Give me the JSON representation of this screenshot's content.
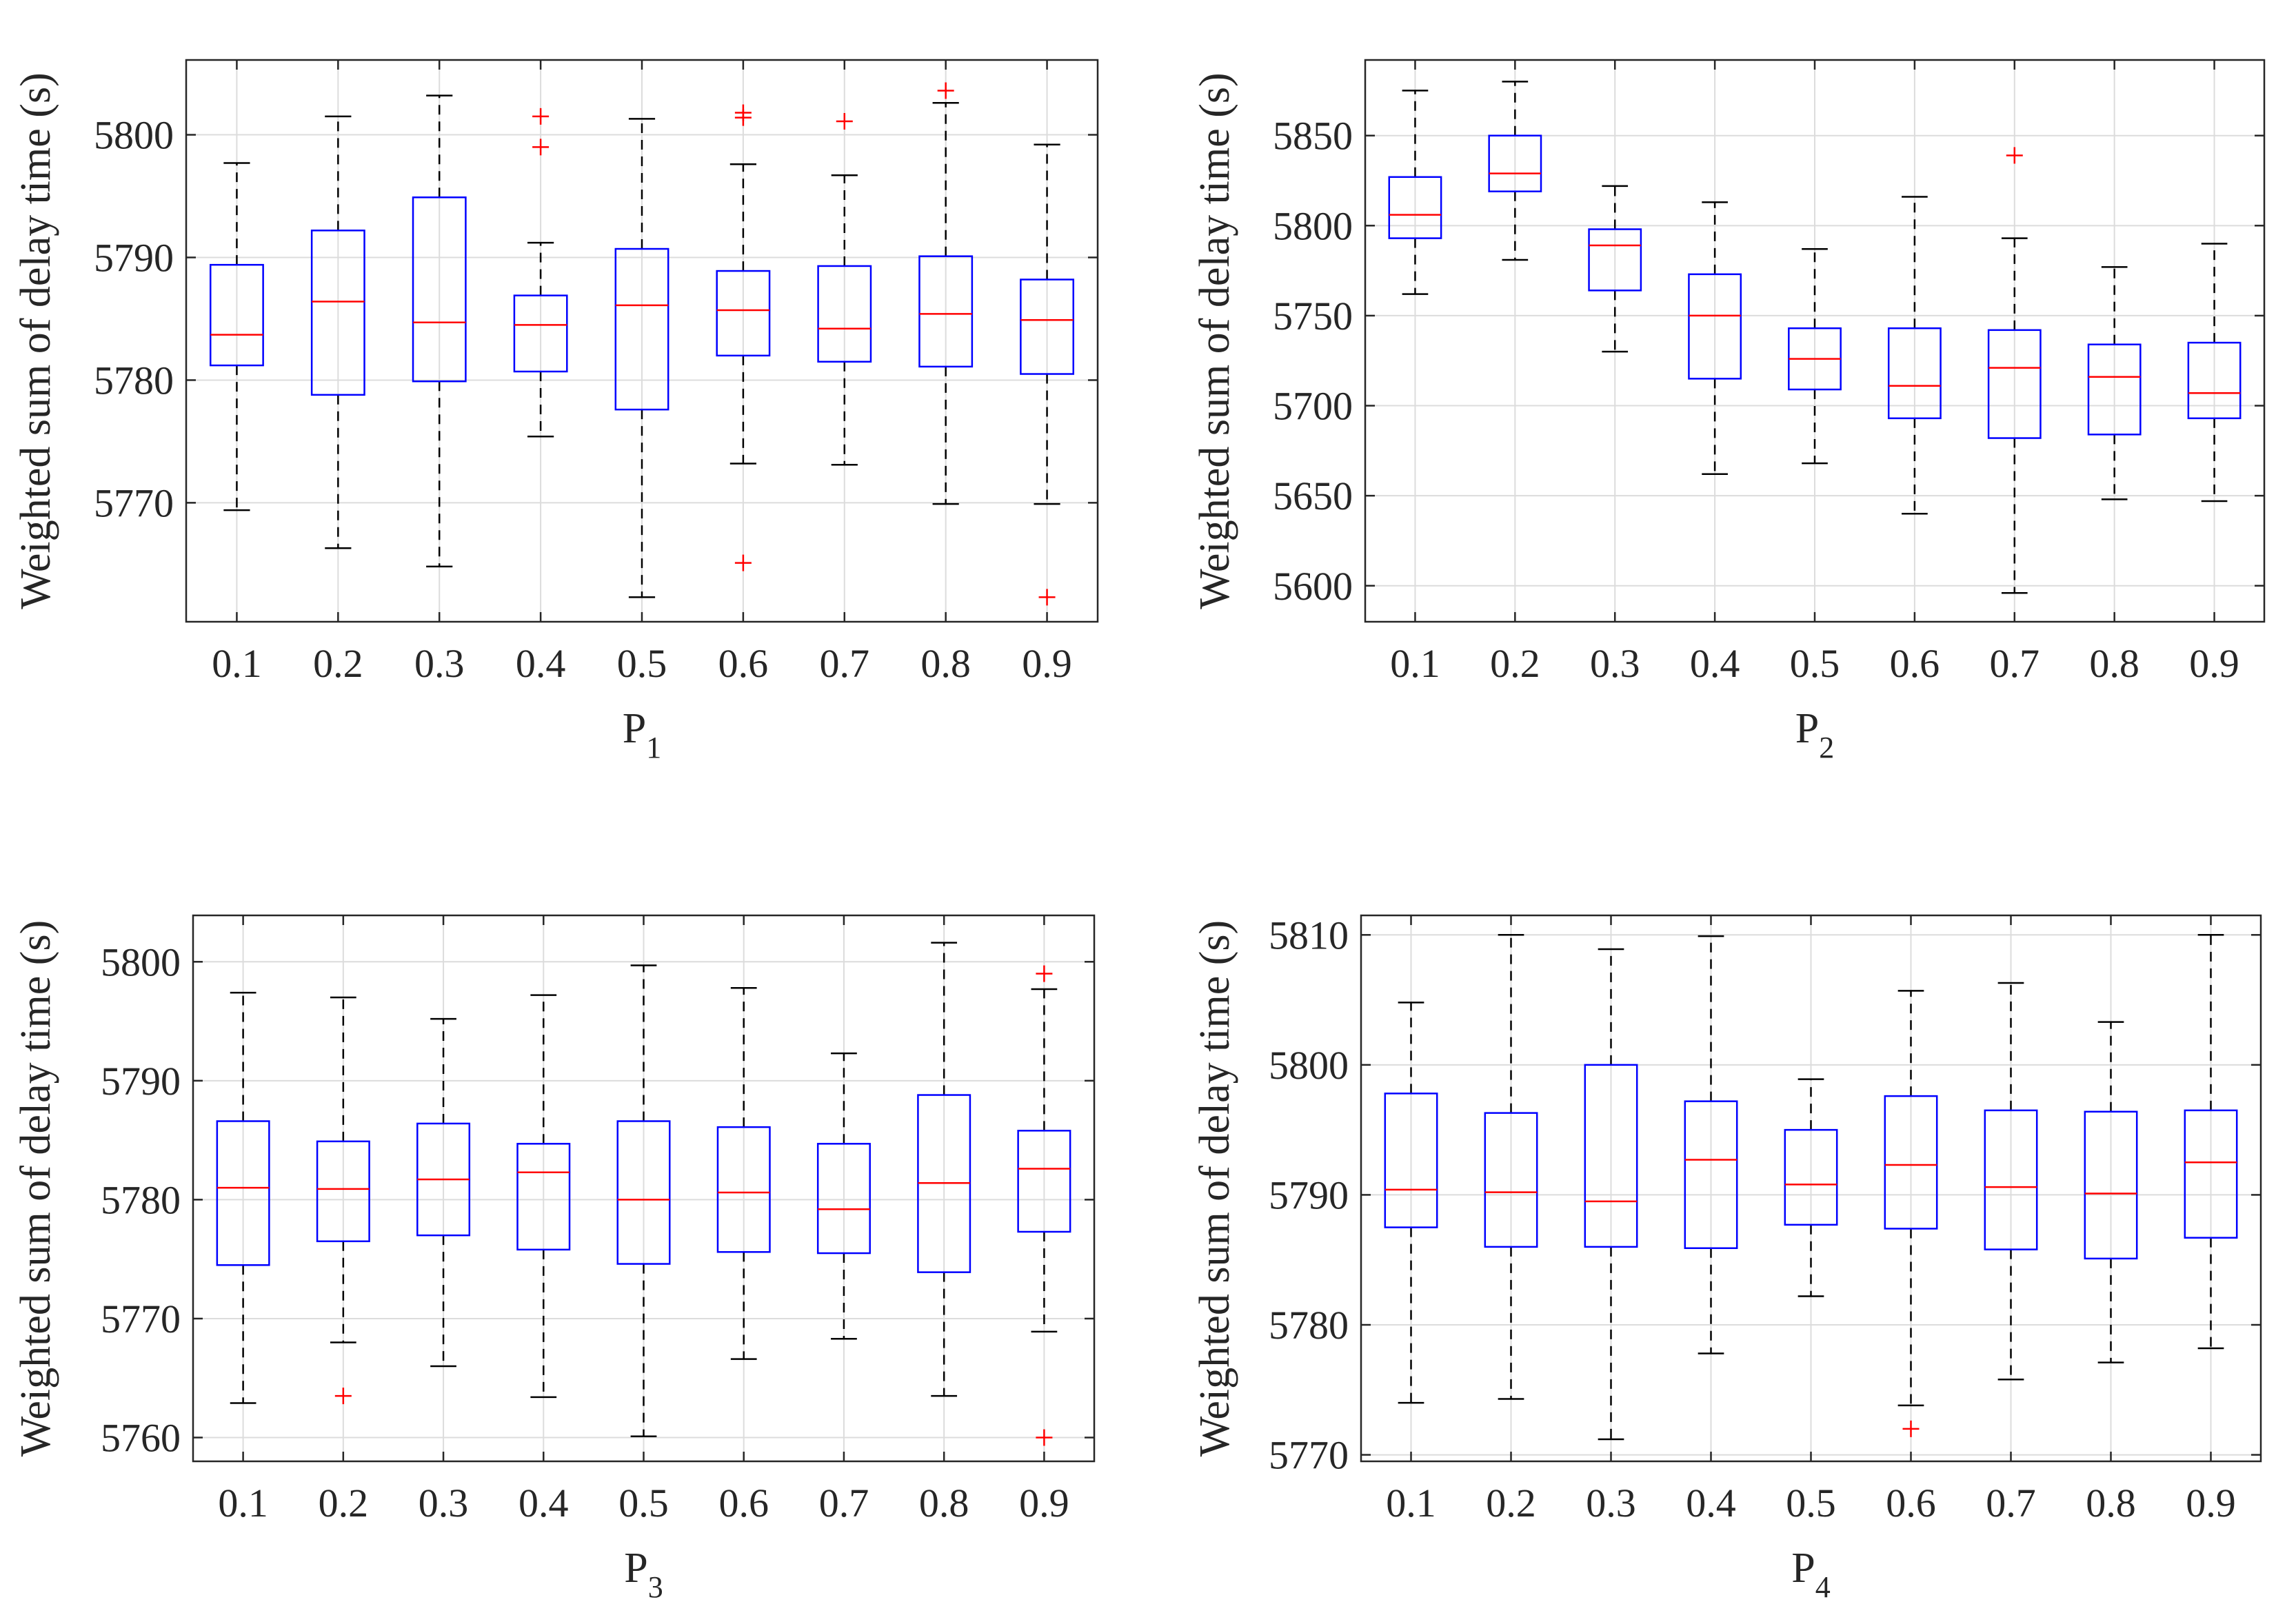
{
  "figure": {
    "layout": "2x2 grid of box plots"
  },
  "chart_data": [
    {
      "type": "box",
      "panel": "P1",
      "title": "",
      "xlabel_main": "P",
      "xlabel_sub": "1",
      "ylabel": "Weighted sum of delay time (s)",
      "categories": [
        "0.1",
        "0.2",
        "0.3",
        "0.4",
        "0.5",
        "0.6",
        "0.7",
        "0.8",
        "0.9"
      ],
      "ylim": [
        5760.3,
        5806.1
      ],
      "yticks": [
        5770,
        5780,
        5790,
        5800
      ],
      "grid": true,
      "boxes": [
        {
          "q1": 5781.2,
          "median": 5783.7,
          "q3": 5789.4,
          "whisker_low": 5769.4,
          "whisker_high": 5797.7,
          "outliers": []
        },
        {
          "q1": 5778.8,
          "median": 5786.4,
          "q3": 5792.2,
          "whisker_low": 5766.3,
          "whisker_high": 5801.5,
          "outliers": []
        },
        {
          "q1": 5779.9,
          "median": 5784.7,
          "q3": 5794.9,
          "whisker_low": 5764.8,
          "whisker_high": 5803.2,
          "outliers": []
        },
        {
          "q1": 5780.7,
          "median": 5784.5,
          "q3": 5786.9,
          "whisker_low": 5775.4,
          "whisker_high": 5791.2,
          "outliers": [
            5801.5,
            5799.0
          ]
        },
        {
          "q1": 5777.6,
          "median": 5786.1,
          "q3": 5790.7,
          "whisker_low": 5762.3,
          "whisker_high": 5801.3,
          "outliers": []
        },
        {
          "q1": 5782.0,
          "median": 5785.7,
          "q3": 5788.9,
          "whisker_low": 5773.2,
          "whisker_high": 5797.6,
          "outliers": [
            5801.8,
            5801.4,
            5765.1
          ]
        },
        {
          "q1": 5781.5,
          "median": 5784.2,
          "q3": 5789.3,
          "whisker_low": 5773.1,
          "whisker_high": 5796.7,
          "outliers": [
            5801.1
          ]
        },
        {
          "q1": 5781.1,
          "median": 5785.4,
          "q3": 5790.1,
          "whisker_low": 5769.9,
          "whisker_high": 5802.6,
          "outliers": [
            5803.6
          ]
        },
        {
          "q1": 5780.5,
          "median": 5784.9,
          "q3": 5788.2,
          "whisker_low": 5769.9,
          "whisker_high": 5799.2,
          "outliers": [
            5762.3
          ]
        }
      ]
    },
    {
      "type": "box",
      "panel": "P2",
      "title": "",
      "xlabel_main": "P",
      "xlabel_sub": "2",
      "ylabel": "Weighted sum of delay time (s)",
      "categories": [
        "0.1",
        "0.2",
        "0.3",
        "0.4",
        "0.5",
        "0.6",
        "0.7",
        "0.8",
        "0.9"
      ],
      "ylim": [
        5580,
        5892
      ],
      "yticks": [
        5600,
        5650,
        5700,
        5750,
        5800,
        5850
      ],
      "grid": true,
      "boxes": [
        {
          "q1": 5793,
          "median": 5806,
          "q3": 5827,
          "whisker_low": 5762,
          "whisker_high": 5875,
          "outliers": []
        },
        {
          "q1": 5819,
          "median": 5829,
          "q3": 5850,
          "whisker_low": 5781,
          "whisker_high": 5880,
          "outliers": []
        },
        {
          "q1": 5764,
          "median": 5789,
          "q3": 5798,
          "whisker_low": 5730,
          "whisker_high": 5822,
          "outliers": []
        },
        {
          "q1": 5715,
          "median": 5750,
          "q3": 5773,
          "whisker_low": 5662,
          "whisker_high": 5813,
          "outliers": []
        },
        {
          "q1": 5709,
          "median": 5726,
          "q3": 5743,
          "whisker_low": 5668,
          "whisker_high": 5787,
          "outliers": []
        },
        {
          "q1": 5693,
          "median": 5711,
          "q3": 5743,
          "whisker_low": 5640,
          "whisker_high": 5816,
          "outliers": []
        },
        {
          "q1": 5682,
          "median": 5721,
          "q3": 5742,
          "whisker_low": 5596,
          "whisker_high": 5793,
          "outliers": [
            5839
          ]
        },
        {
          "q1": 5684,
          "median": 5716,
          "q3": 5734,
          "whisker_low": 5648,
          "whisker_high": 5777,
          "outliers": []
        },
        {
          "q1": 5693,
          "median": 5707,
          "q3": 5735,
          "whisker_low": 5647,
          "whisker_high": 5790,
          "outliers": []
        }
      ]
    },
    {
      "type": "box",
      "panel": "P3",
      "title": "",
      "xlabel_main": "P",
      "xlabel_sub": "3",
      "ylabel": "Weighted sum of delay time (s)",
      "categories": [
        "0.1",
        "0.2",
        "0.3",
        "0.4",
        "0.5",
        "0.6",
        "0.7",
        "0.8",
        "0.9"
      ],
      "ylim": [
        5758,
        5803.9
      ],
      "yticks": [
        5760,
        5770,
        5780,
        5790,
        5800
      ],
      "grid": true,
      "boxes": [
        {
          "q1": 5774.5,
          "median": 5781.0,
          "q3": 5786.6,
          "whisker_low": 5762.9,
          "whisker_high": 5797.4,
          "outliers": []
        },
        {
          "q1": 5776.5,
          "median": 5780.9,
          "q3": 5784.9,
          "whisker_low": 5768.0,
          "whisker_high": 5797.0,
          "outliers": [
            5763.5
          ]
        },
        {
          "q1": 5777.0,
          "median": 5781.7,
          "q3": 5786.4,
          "whisker_low": 5766.0,
          "whisker_high": 5795.2,
          "outliers": []
        },
        {
          "q1": 5775.8,
          "median": 5782.3,
          "q3": 5784.7,
          "whisker_low": 5763.4,
          "whisker_high": 5797.2,
          "outliers": []
        },
        {
          "q1": 5774.6,
          "median": 5780.0,
          "q3": 5786.6,
          "whisker_low": 5760.1,
          "whisker_high": 5799.7,
          "outliers": []
        },
        {
          "q1": 5775.6,
          "median": 5780.6,
          "q3": 5786.1,
          "whisker_low": 5766.6,
          "whisker_high": 5797.8,
          "outliers": []
        },
        {
          "q1": 5775.5,
          "median": 5779.2,
          "q3": 5784.7,
          "whisker_low": 5768.3,
          "whisker_high": 5792.3,
          "outliers": []
        },
        {
          "q1": 5773.9,
          "median": 5781.4,
          "q3": 5788.8,
          "whisker_low": 5763.5,
          "whisker_high": 5801.6,
          "outliers": []
        },
        {
          "q1": 5777.3,
          "median": 5782.6,
          "q3": 5785.8,
          "whisker_low": 5768.9,
          "whisker_high": 5797.7,
          "outliers": [
            5799.0,
            5760.0
          ]
        }
      ]
    },
    {
      "type": "box",
      "panel": "P4",
      "title": "",
      "xlabel_main": "P",
      "xlabel_sub": "4",
      "ylabel": "Weighted sum of delay time (s)",
      "categories": [
        "0.1",
        "0.2",
        "0.3",
        "0.4",
        "0.5",
        "0.6",
        "0.7",
        "0.8",
        "0.9"
      ],
      "ylim": [
        5769.5,
        5811.5
      ],
      "yticks": [
        5770,
        5780,
        5790,
        5800,
        5810
      ],
      "grid": true,
      "boxes": [
        {
          "q1": 5787.5,
          "median": 5790.4,
          "q3": 5797.8,
          "whisker_low": 5774.0,
          "whisker_high": 5804.8,
          "outliers": []
        },
        {
          "q1": 5786.0,
          "median": 5790.2,
          "q3": 5796.3,
          "whisker_low": 5774.3,
          "whisker_high": 5810.0,
          "outliers": []
        },
        {
          "q1": 5786.0,
          "median": 5789.5,
          "q3": 5800.0,
          "whisker_low": 5771.2,
          "whisker_high": 5808.9,
          "outliers": []
        },
        {
          "q1": 5785.9,
          "median": 5792.7,
          "q3": 5797.2,
          "whisker_low": 5777.8,
          "whisker_high": 5809.9,
          "outliers": []
        },
        {
          "q1": 5787.7,
          "median": 5790.8,
          "q3": 5795.0,
          "whisker_low": 5782.2,
          "whisker_high": 5798.9,
          "outliers": []
        },
        {
          "q1": 5787.4,
          "median": 5792.3,
          "q3": 5797.6,
          "whisker_low": 5773.8,
          "whisker_high": 5805.7,
          "outliers": [
            5772.0
          ]
        },
        {
          "q1": 5785.8,
          "median": 5790.6,
          "q3": 5796.5,
          "whisker_low": 5775.8,
          "whisker_high": 5806.3,
          "outliers": []
        },
        {
          "q1": 5785.1,
          "median": 5790.1,
          "q3": 5796.4,
          "whisker_low": 5777.1,
          "whisker_high": 5803.3,
          "outliers": []
        },
        {
          "q1": 5786.7,
          "median": 5792.5,
          "q3": 5796.5,
          "whisker_low": 5778.2,
          "whisker_high": 5810.0,
          "outliers": []
        }
      ]
    }
  ],
  "colors": {
    "box": "#0000ff",
    "median": "#ff0000",
    "whisker": "#000000",
    "outlier": "#ff0000",
    "grid": "#dcdcdc",
    "axes": "#262626"
  }
}
